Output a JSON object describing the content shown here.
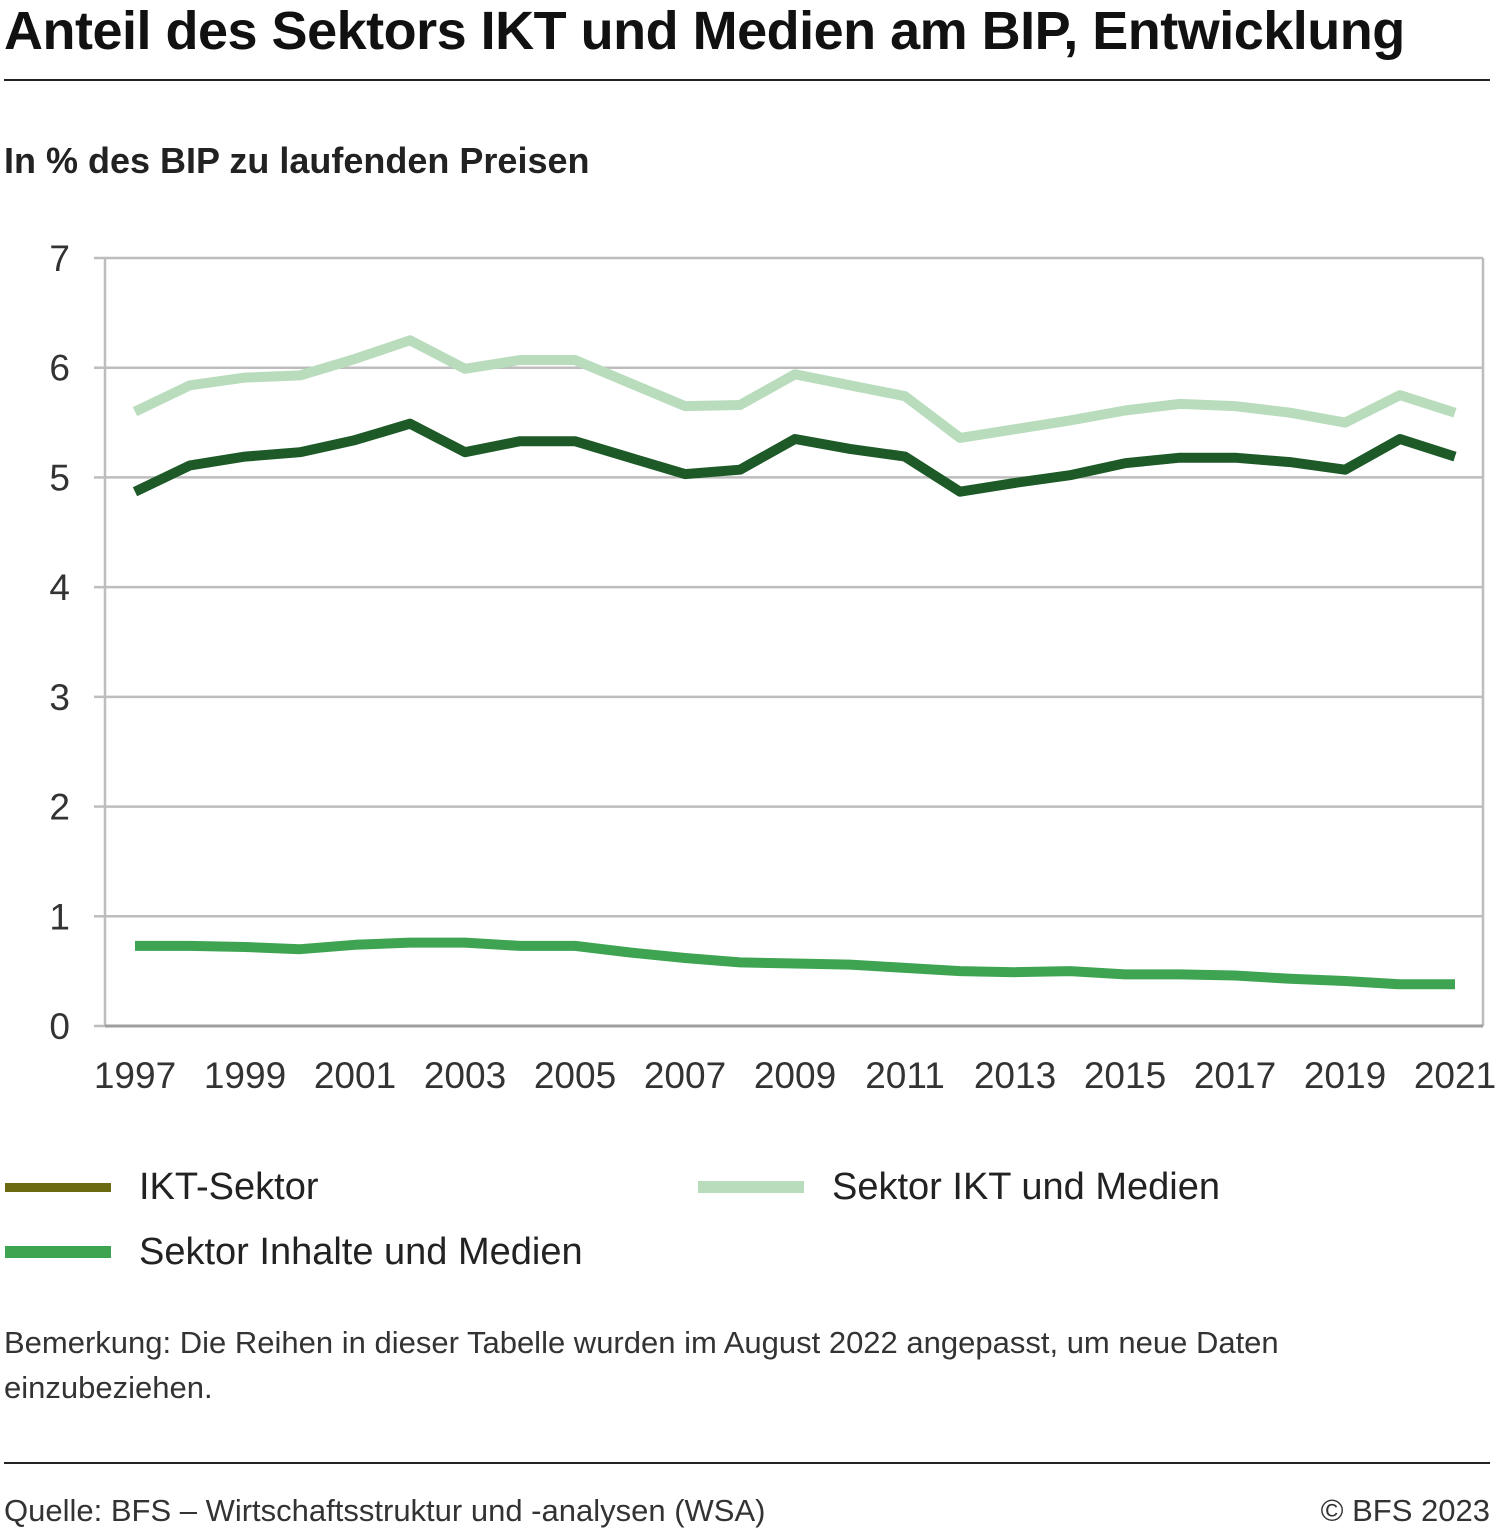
{
  "title": "Anteil des Sektors IKT und Medien am BIP, Entwicklung",
  "subtitle": "In % des BIP zu laufenden Preisen",
  "note": "Bemerkung: Die Reihen in dieser Tabelle wurden im August 2022 angepasst, um neue Daten einzubeziehen.",
  "source": "Quelle: BFS – Wirtschaftsstruktur und -analysen  (WSA)",
  "copyright": "© BFS 2023",
  "legend": [
    {
      "label": "IKT-Sektor",
      "color": "#6b6a10"
    },
    {
      "label": "Sektor IKT und Medien",
      "color": "#b9dcbd"
    },
    {
      "label": "Sektor Inhalte und Medien",
      "color": "#3ea452"
    }
  ],
  "chart_data": {
    "type": "line",
    "ylim": [
      0,
      7
    ],
    "yticks": [
      "0",
      "1",
      "2",
      "3",
      "4",
      "5",
      "6",
      "7"
    ],
    "x": [
      1997,
      1998,
      1999,
      2000,
      2001,
      2002,
      2003,
      2004,
      2005,
      2006,
      2007,
      2008,
      2009,
      2010,
      2011,
      2012,
      2013,
      2014,
      2015,
      2016,
      2017,
      2018,
      2019,
      2020,
      2021
    ],
    "xticks": [
      "1997",
      "1999",
      "2001",
      "2003",
      "2005",
      "2007",
      "2009",
      "2011",
      "2013",
      "2015",
      "2017",
      "2019",
      "2021"
    ],
    "grid": true,
    "series": [
      {
        "name": "Sektor IKT und Medien",
        "color": "#b9dcbd",
        "values": [
          5.6,
          5.84,
          5.91,
          5.93,
          6.08,
          6.25,
          5.99,
          6.07,
          6.07,
          5.86,
          5.65,
          5.66,
          5.94,
          5.84,
          5.74,
          5.36,
          5.44,
          5.52,
          5.61,
          5.67,
          5.65,
          5.59,
          5.5,
          5.75,
          5.59
        ]
      },
      {
        "name": "IKT-Sektor",
        "color": "#1e5a28",
        "values": [
          4.87,
          5.11,
          5.19,
          5.23,
          5.34,
          5.49,
          5.23,
          5.33,
          5.33,
          5.18,
          5.03,
          5.07,
          5.35,
          5.26,
          5.19,
          4.87,
          4.95,
          5.02,
          5.13,
          5.18,
          5.18,
          5.14,
          5.07,
          5.35,
          5.19
        ]
      },
      {
        "name": "Sektor Inhalte und Medien",
        "color": "#3ea452",
        "values": [
          0.73,
          0.73,
          0.72,
          0.7,
          0.74,
          0.76,
          0.76,
          0.73,
          0.73,
          0.67,
          0.62,
          0.58,
          0.57,
          0.56,
          0.53,
          0.5,
          0.49,
          0.5,
          0.47,
          0.47,
          0.46,
          0.43,
          0.41,
          0.38,
          0.38
        ]
      }
    ]
  }
}
